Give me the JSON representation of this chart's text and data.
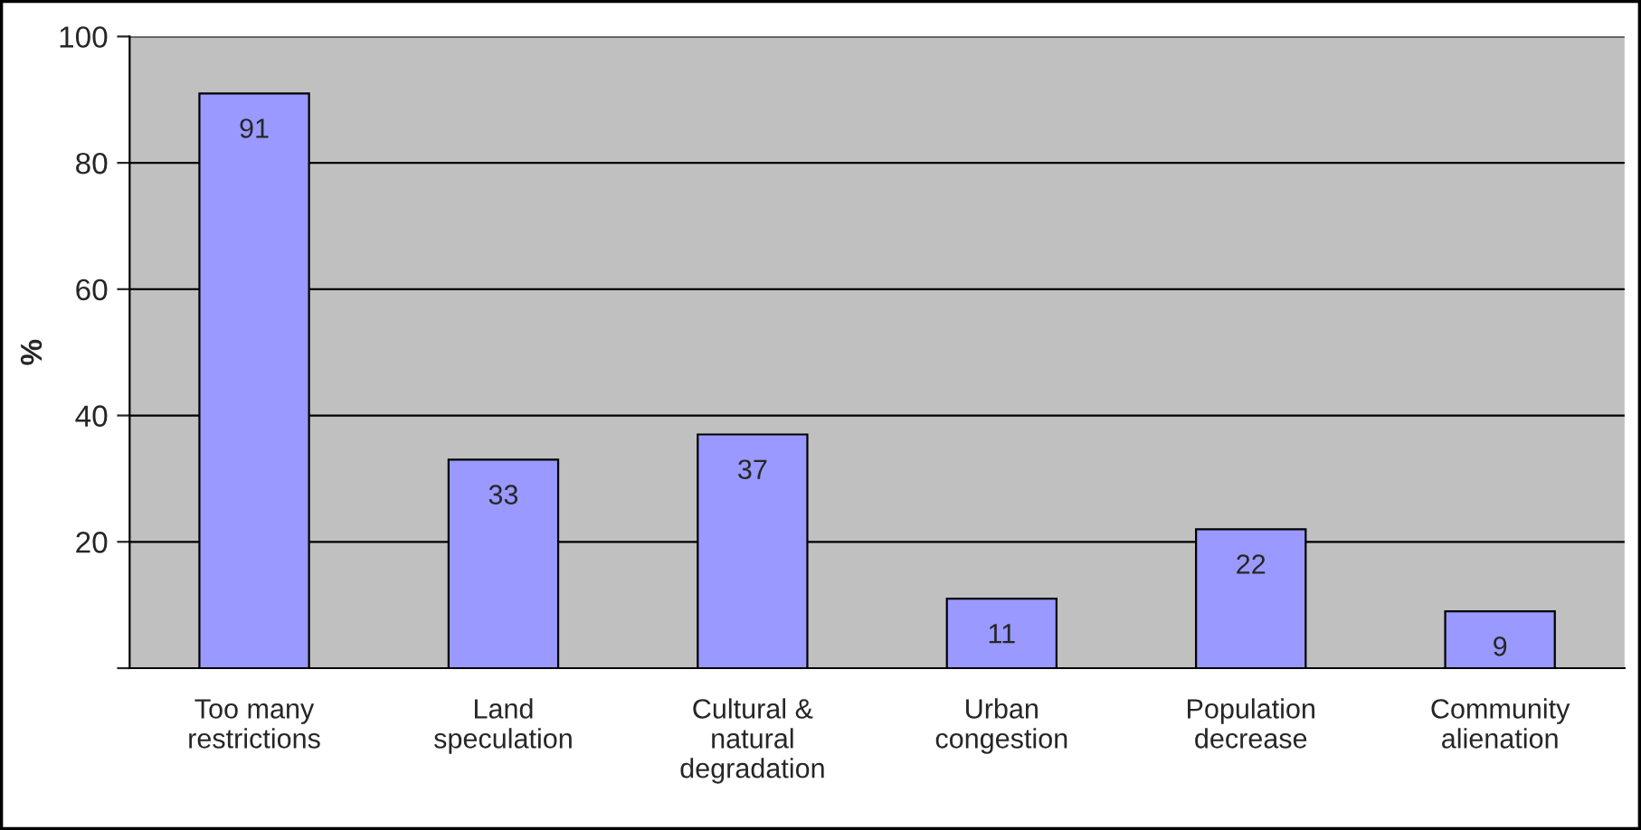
{
  "chart_data": {
    "type": "bar",
    "ylabel": "%",
    "categories": [
      "Too many\nrestrictions",
      "Land\nspeculation",
      "Cultural &\nnatural\ndegradation",
      "Urban\ncongestion",
      "Population\ndecrease",
      "Community\nalienation"
    ],
    "values": [
      91,
      33,
      37,
      11,
      22,
      9
    ],
    "color": "#9999ff",
    "ylim": [
      0,
      100
    ],
    "yticks": [
      {
        "value": 0,
        "label": null
      },
      20,
      40,
      60,
      80,
      100
    ],
    "grid": "y",
    "data_labels": true
  }
}
